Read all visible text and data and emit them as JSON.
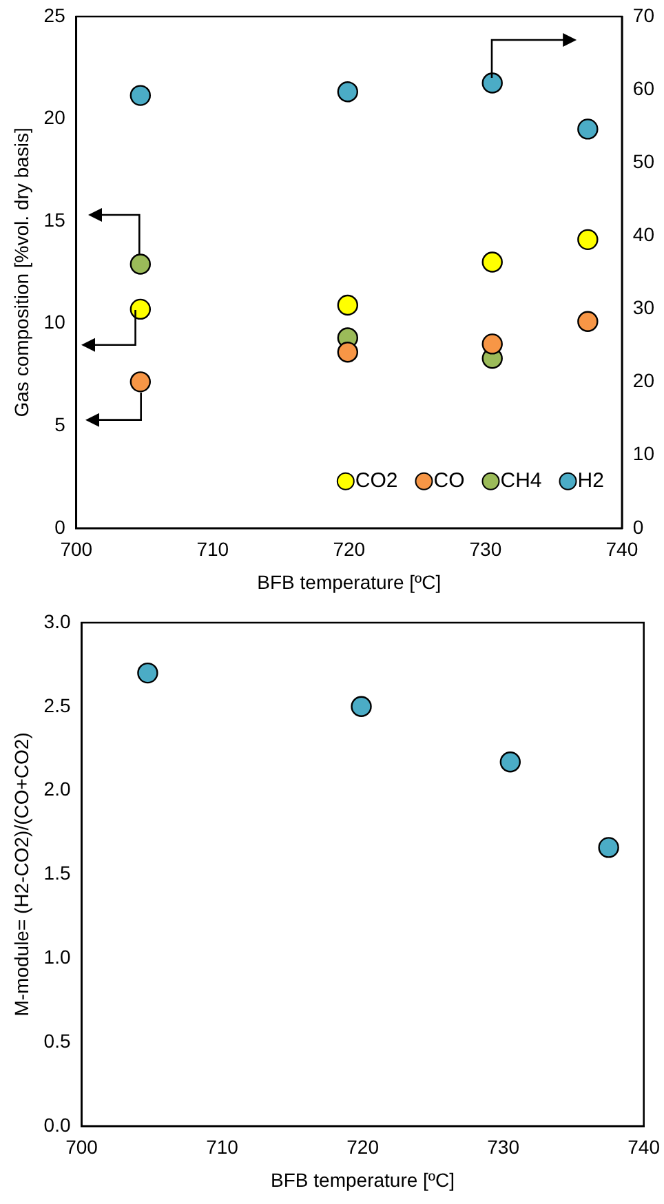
{
  "chart_data": [
    {
      "type": "scatter",
      "xlabel": "BFB temperature [ºC]",
      "ylabel": "Gas composition [%vol. dry basis]",
      "x": [
        704.7,
        719.9,
        730.5,
        737.5
      ],
      "series": [
        {
          "name": "CO2",
          "color": "#ffff00",
          "values": [
            10.7,
            10.9,
            13.0,
            14.1
          ]
        },
        {
          "name": "CO",
          "color": "#f79646",
          "values": [
            7.15,
            8.6,
            9.0,
            10.1
          ]
        },
        {
          "name": "CH4",
          "color": "#9bbb59",
          "values": [
            12.9,
            9.3,
            8.3,
            null
          ]
        },
        {
          "name": "H2",
          "color": "#4bacc6",
          "axis": "y2",
          "values": [
            59.2,
            59.7,
            60.9,
            54.6
          ]
        }
      ],
      "xlim": [
        700,
        740
      ],
      "xticks": [
        700,
        710,
        720,
        730,
        740
      ],
      "ylim": [
        0,
        25
      ],
      "yticks": [
        0,
        5,
        10,
        15,
        20,
        25
      ],
      "y2lim": [
        0,
        70
      ],
      "y2ticks": [
        0,
        10,
        20,
        30,
        40,
        50,
        60,
        70
      ],
      "legend": "bottom right",
      "marker": "circle"
    },
    {
      "type": "scatter",
      "xlabel": "BFB temperature [ºC]",
      "ylabel": "M-module= (H2-CO2)/(CO+CO2)",
      "x": [
        704.7,
        719.9,
        730.5,
        737.5
      ],
      "series": [
        {
          "color": "#4bacc6",
          "values": [
            2.7,
            2.5,
            2.17,
            1.66
          ]
        }
      ],
      "xlim": [
        700,
        740
      ],
      "xticks": [
        700,
        710,
        720,
        730,
        740
      ],
      "ylim": [
        0,
        3
      ],
      "yticks": [
        {
          "value": 0,
          "label": "0.0"
        },
        {
          "value": 0.5,
          "label": "0.5"
        },
        {
          "value": 1,
          "label": "1.0"
        },
        {
          "value": 1.5,
          "label": "1.5"
        },
        {
          "value": 2,
          "label": "2.0"
        },
        {
          "value": 2.5,
          "label": "2.5"
        },
        {
          "value": 3,
          "label": "3.0"
        }
      ],
      "marker": "circle"
    }
  ]
}
